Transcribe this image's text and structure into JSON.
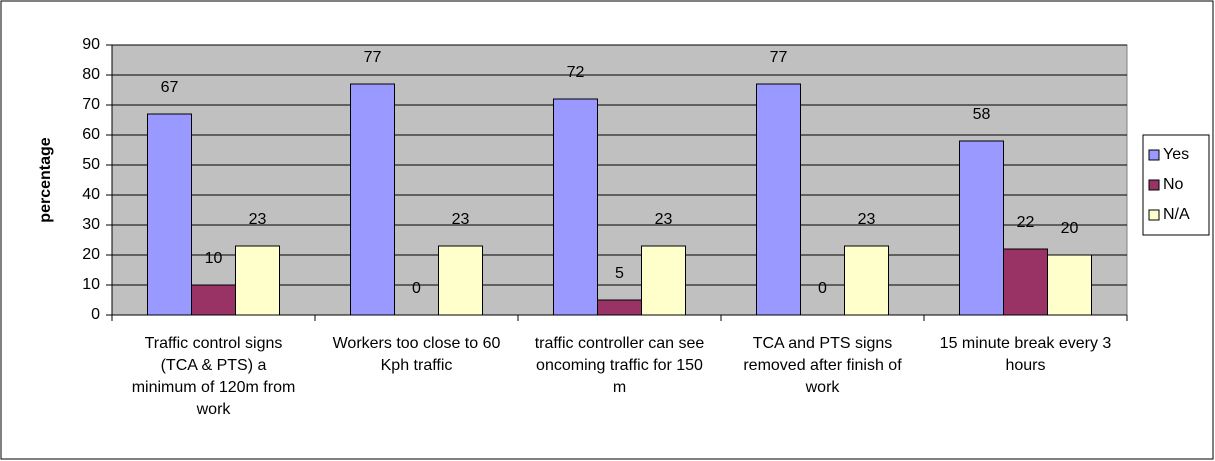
{
  "chart_data": {
    "type": "bar",
    "y_label": "percentage",
    "categories": [
      "Traffic control signs (TCA & PTS) a minimum of 120m from work",
      "Workers too close to 60 Kph traffic",
      "traffic controller can see oncoming traffic for 150 m",
      "TCA and PTS signs removed after finish of work",
      "15 minute break every 3 hours"
    ],
    "series": [
      {
        "name": "Yes",
        "color": "#9999ff",
        "values": [
          67,
          77,
          72,
          77,
          58
        ]
      },
      {
        "name": "No",
        "color": "#993366",
        "values": [
          10,
          0,
          5,
          0,
          22
        ]
      },
      {
        "name": "N/A",
        "color": "#ffffcc",
        "values": [
          23,
          23,
          23,
          23,
          20
        ]
      }
    ],
    "ylim": [
      0,
      90
    ],
    "yticks": [
      0,
      10,
      20,
      30,
      40,
      50,
      60,
      70,
      80,
      90
    ],
    "grid": true,
    "legend": "right",
    "plot_background": "#c0c0c0"
  }
}
